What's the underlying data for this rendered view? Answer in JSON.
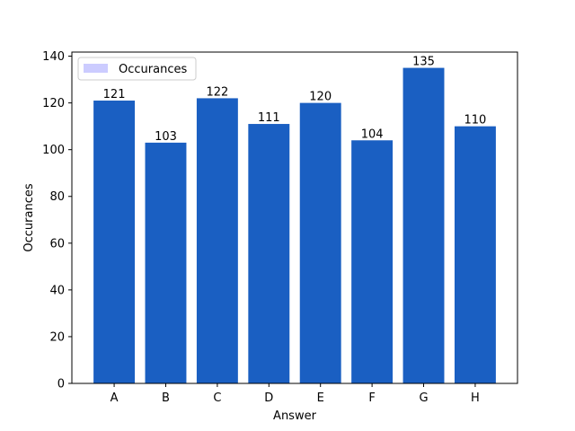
{
  "chart_data": {
    "type": "bar",
    "categories": [
      "A",
      "B",
      "C",
      "D",
      "E",
      "F",
      "G",
      "H"
    ],
    "series": [
      {
        "name": "Occurances",
        "values": [
          121,
          103,
          122,
          111,
          120,
          104,
          135,
          110
        ]
      }
    ],
    "xlabel": "Answer",
    "ylabel": "Occurances",
    "ylim": [
      0,
      140
    ],
    "yticks": [
      0,
      20,
      40,
      60,
      80,
      100,
      120,
      140
    ],
    "grid": false,
    "legend_position": "top-left",
    "bar_color": "#1a5fc2",
    "legend_swatch_color": "#ccccff"
  }
}
